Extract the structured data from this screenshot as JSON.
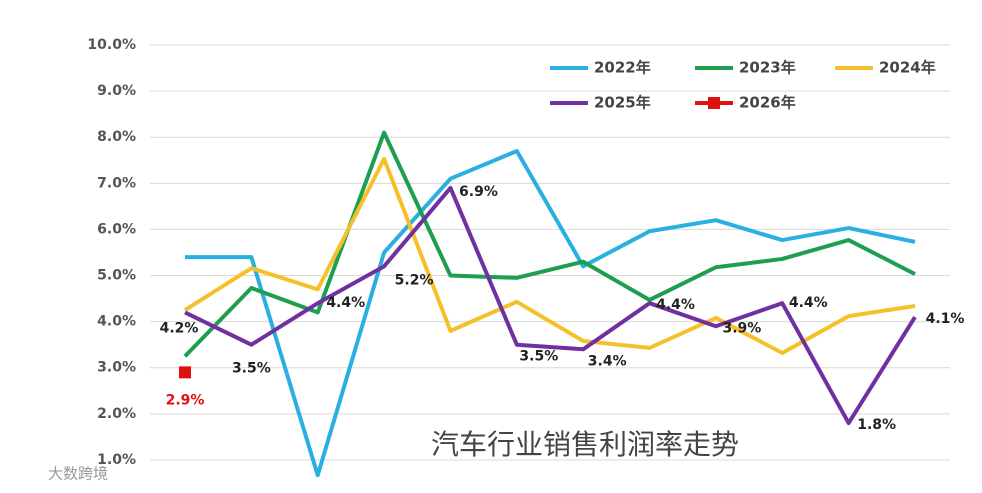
{
  "chart_data": {
    "type": "line",
    "title": "汽车行业销售利润率走势",
    "watermark": "大数跨境",
    "categories": [
      null,
      null,
      null,
      null,
      null,
      null,
      null,
      null,
      null,
      null,
      null,
      null
    ],
    "ylim": [
      0.6,
      10.1
    ],
    "yticks": [
      {
        "value": 1,
        "label": "1.0%"
      },
      {
        "value": 2,
        "label": "2.0%"
      },
      {
        "value": 3,
        "label": "3.0%"
      },
      {
        "value": 4,
        "label": "4.0%"
      },
      {
        "value": 5,
        "label": "5.0%"
      },
      {
        "value": 6,
        "label": "6.0%"
      },
      {
        "value": 7,
        "label": "7.0%"
      },
      {
        "value": 8,
        "label": "8.0%"
      },
      {
        "value": 9,
        "label": "9.0%"
      },
      {
        "value": 10,
        "label": "10.0%"
      }
    ],
    "grid": true,
    "legend": "top-right",
    "series": [
      {
        "name": "2022年",
        "color": "#2ab0e0",
        "values": [
          5.4,
          5.4,
          0.67,
          5.5,
          7.1,
          7.7,
          5.2,
          5.96,
          6.2,
          5.77,
          6.03,
          5.73
        ]
      },
      {
        "name": "2023年",
        "color": "#1e9e50",
        "values": [
          3.25,
          4.73,
          4.2,
          8.1,
          5.0,
          4.95,
          5.3,
          4.47,
          5.18,
          5.36,
          5.77,
          5.03
        ]
      },
      {
        "name": "2024年",
        "color": "#f5c02a",
        "values": [
          4.25,
          5.16,
          4.7,
          7.53,
          3.8,
          4.43,
          3.58,
          3.43,
          4.08,
          3.32,
          4.12,
          4.34
        ]
      },
      {
        "name": "2025年",
        "color": "#7030a0",
        "values": [
          4.2,
          3.5,
          4.4,
          5.2,
          6.9,
          3.5,
          3.4,
          4.4,
          3.9,
          4.4,
          1.8,
          4.1
        ],
        "value_labels": [
          "4.2%",
          "3.5%",
          "4.4%",
          "5.2%",
          "6.9%",
          "3.5%",
          "3.4%",
          "4.4%",
          "3.9%",
          "4.4%",
          "1.8%",
          "4.1%"
        ]
      },
      {
        "name": "2026年",
        "color": "#e01010",
        "values": [
          2.9,
          null,
          null,
          null,
          null,
          null,
          null,
          null,
          null,
          null,
          null,
          null
        ],
        "value_labels": [
          "2.9%",
          null,
          null,
          null,
          null,
          null,
          null,
          null,
          null,
          null,
          null,
          null
        ]
      }
    ]
  }
}
